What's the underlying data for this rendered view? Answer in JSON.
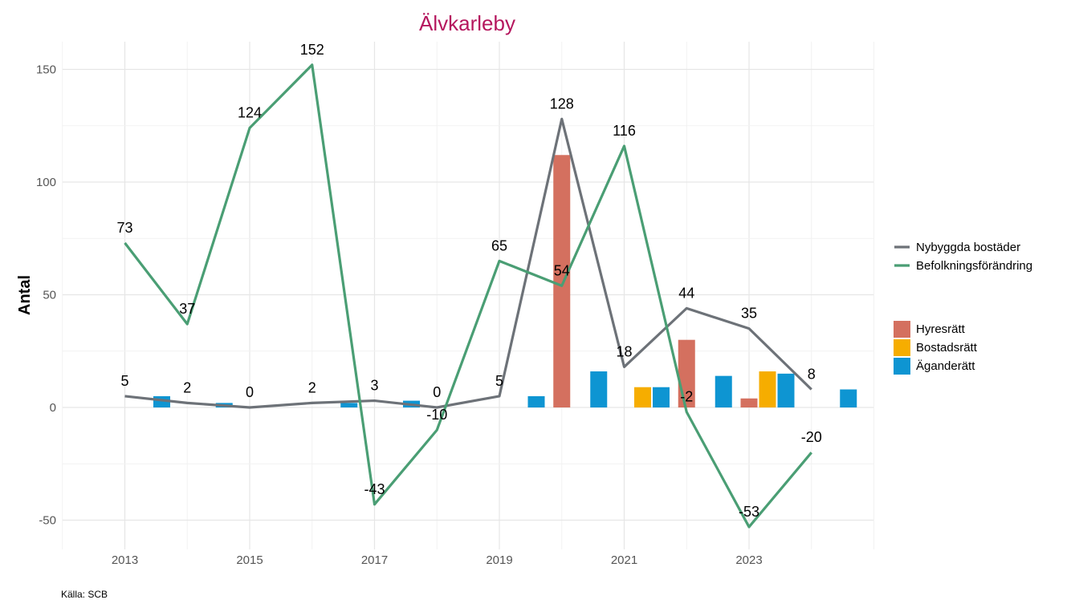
{
  "chart_data": {
    "type": "bar+line",
    "title": "Älvkarleby",
    "xlabel": "",
    "ylabel": "Antal",
    "ylim": [
      -62,
      162
    ],
    "xlim": [
      2012,
      2025
    ],
    "yticks": [
      -50,
      0,
      50,
      100,
      150
    ],
    "xticks": [
      2013,
      2015,
      2017,
      2019,
      2021,
      2023
    ],
    "x": [
      2013,
      2014,
      2015,
      2016,
      2017,
      2018,
      2019,
      2020,
      2021,
      2022,
      2023,
      2024
    ],
    "lines": [
      {
        "name": "Nybyggda bostäder",
        "color": "#6d7278",
        "values": [
          5,
          2,
          0,
          2,
          3,
          0,
          5,
          128,
          18,
          44,
          35,
          8
        ]
      },
      {
        "name": "Befolkningsförändring",
        "color": "#4a9e74",
        "values": [
          73,
          37,
          124,
          152,
          -43,
          -10,
          65,
          54,
          116,
          -2,
          -53,
          -20
        ]
      }
    ],
    "bars": [
      {
        "name": "Hyresrätt",
        "color": "#d4705f",
        "values": [
          0,
          0,
          0,
          0,
          0,
          0,
          0,
          112,
          0,
          30,
          4,
          0
        ]
      },
      {
        "name": "Bostadsrätt",
        "color": "#f6ad00",
        "values": [
          0,
          0,
          0,
          0,
          0,
          0,
          0,
          0,
          9,
          0,
          16,
          0
        ]
      },
      {
        "name": "Äganderätt",
        "color": "#0e95d2",
        "values": [
          5,
          2,
          0,
          2,
          3,
          0,
          5,
          16,
          9,
          14,
          15,
          8
        ]
      }
    ],
    "legend_position": "right",
    "grid": true
  },
  "caption": "Källa: SCB"
}
